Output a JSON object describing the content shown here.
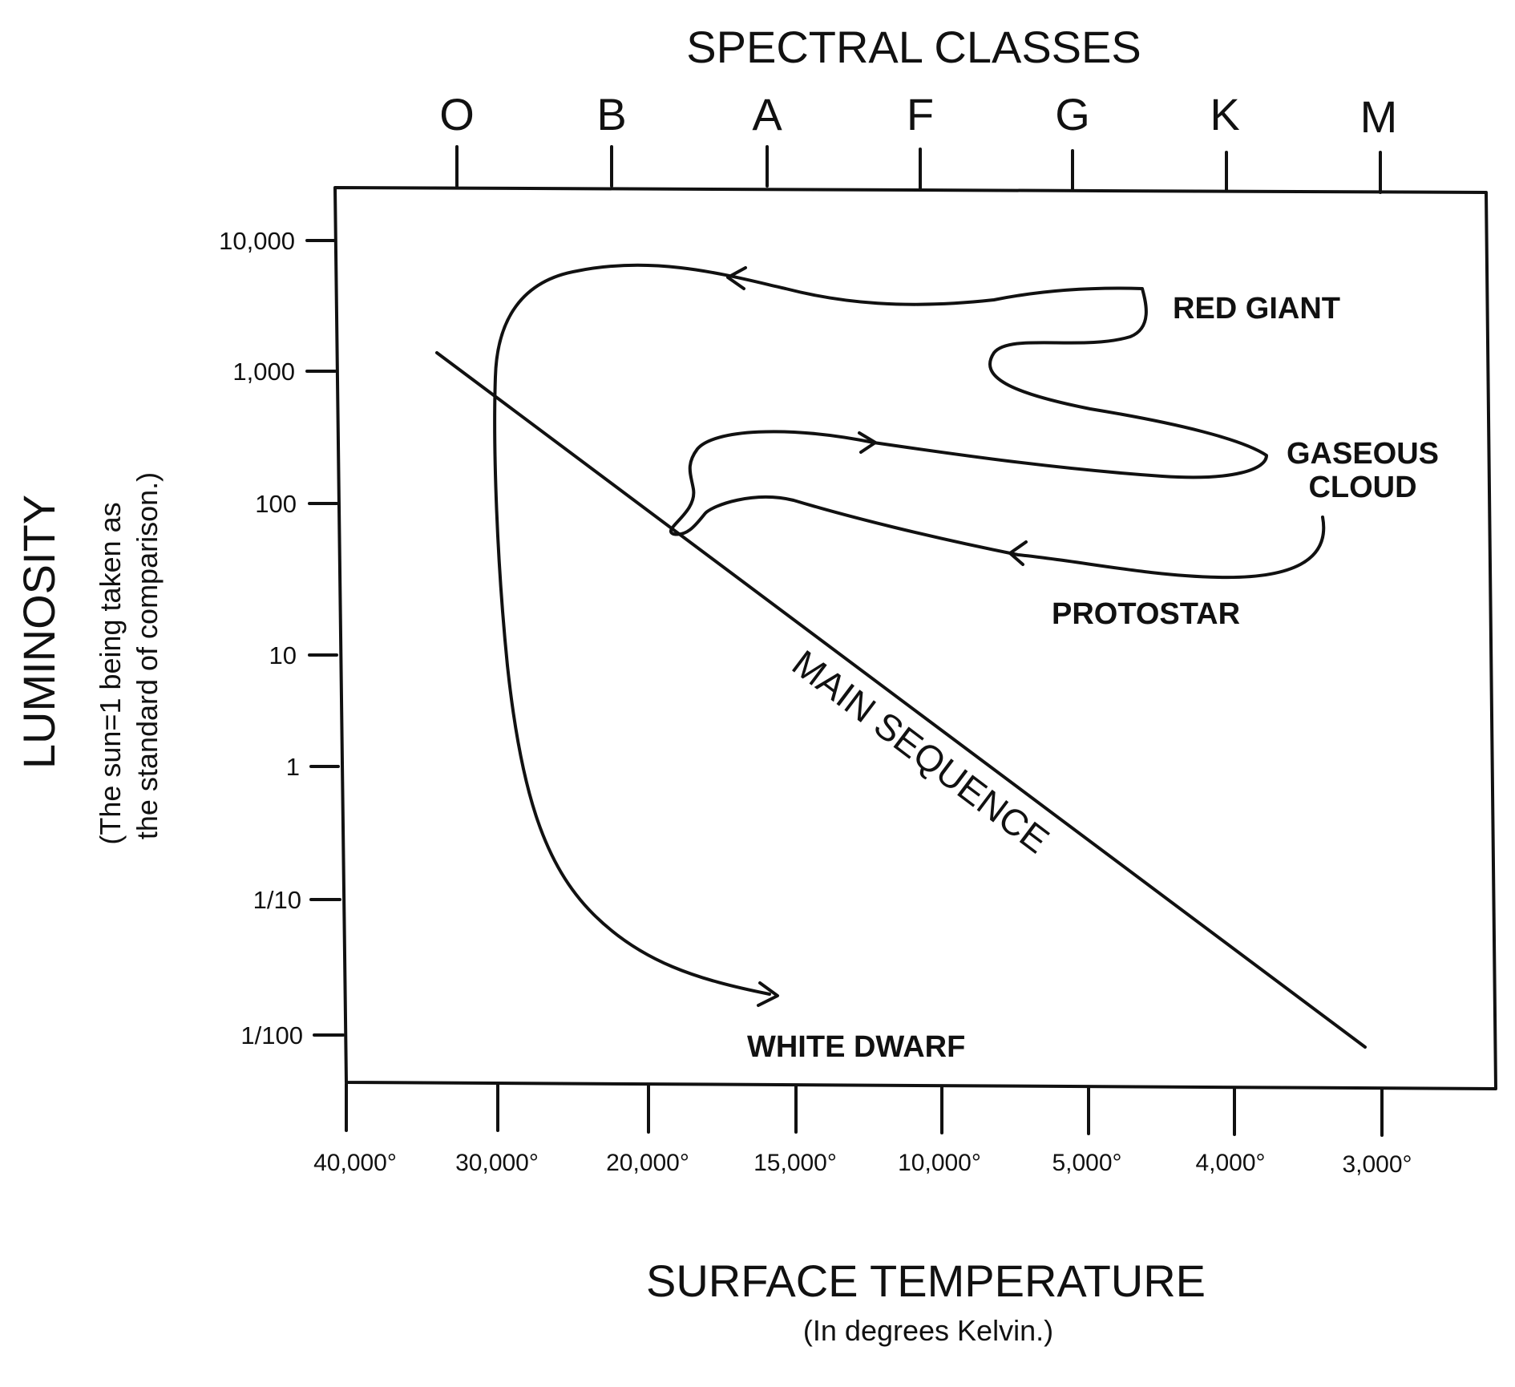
{
  "chart_data": {
    "type": "line",
    "top_axis_title": "SPECTRAL CLASSES",
    "spectral_classes": [
      "O",
      "B",
      "A",
      "F",
      "G",
      "K",
      "M"
    ],
    "x_axis": {
      "title": "SURFACE TEMPERATURE",
      "subtitle": "(In degrees Kelvin.)",
      "ticks": [
        "40,000°",
        "30,000°",
        "20,000°",
        "15,000°",
        "10,000°",
        "5,000°",
        "4,000°",
        "3,000°"
      ]
    },
    "y_axis": {
      "title": "LUMINOSITY",
      "subtitle_line1": "(The sun=1 being taken as",
      "subtitle_line2": "the standard of comparison.)",
      "ticks": [
        "10,000",
        "1,000",
        "100",
        "10",
        "1",
        "1/10",
        "1/100"
      ]
    },
    "main_sequence": {
      "label": "MAIN SEQUENCE",
      "from": {
        "temperature": "32,000°",
        "luminosity": "1,400"
      },
      "to": {
        "temperature": "3,000°",
        "luminosity": "1/100"
      }
    },
    "stages": [
      {
        "label": "GASEOUS CLOUD",
        "line1": "GASEOUS",
        "line2": "CLOUD"
      },
      {
        "label": "PROTOSTAR"
      },
      {
        "label": "RED GIANT"
      },
      {
        "label": "WHITE DWARF"
      }
    ],
    "grid": false,
    "legend": "none"
  }
}
